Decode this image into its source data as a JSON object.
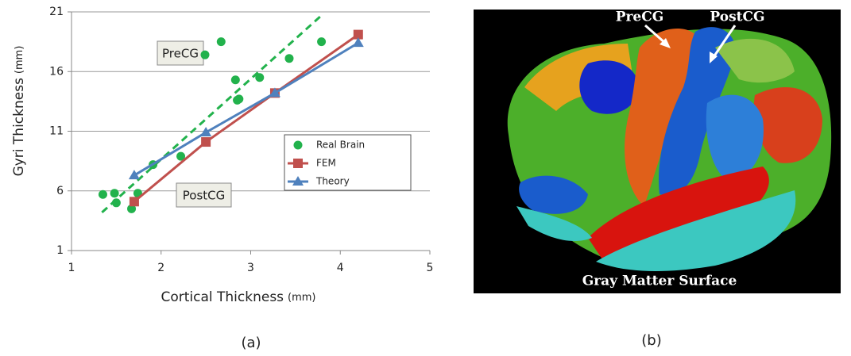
{
  "chart_data": {
    "type": "scatter",
    "xlabel": "Cortical Thickness",
    "xlabel_unit": "(mm)",
    "ylabel": "Gyri Thickness",
    "ylabel_unit": "(mm)",
    "xlim": [
      1,
      5
    ],
    "xticks": [
      1,
      2,
      3,
      4,
      5
    ],
    "ylim": [
      1,
      21
    ],
    "yticks": [
      1,
      6,
      11,
      16,
      21
    ],
    "grid": true,
    "legend": "right",
    "annotations": [
      "PreCG",
      "PostCG"
    ],
    "series": [
      {
        "name": "Real Brain",
        "color": "#22b24c",
        "marker": "circle",
        "line": false,
        "x": [
          1.35,
          1.48,
          1.5,
          1.67,
          1.74,
          1.91,
          2.22,
          2.49,
          2.67,
          2.83,
          2.85,
          2.87,
          3.1,
          3.43,
          3.79
        ],
        "values": [
          5.7,
          5.8,
          5.0,
          4.5,
          5.8,
          8.2,
          8.9,
          17.4,
          18.5,
          15.3,
          13.6,
          13.7,
          15.5,
          17.1,
          18.5
        ]
      },
      {
        "name": "FEM",
        "color": "#c0504d",
        "marker": "square",
        "line": true,
        "x": [
          1.7,
          2.5,
          3.27,
          4.2
        ],
        "values": [
          5.1,
          10.1,
          14.2,
          19.1
        ]
      },
      {
        "name": "Theory",
        "color": "#4f81bd",
        "marker": "triangle",
        "line": true,
        "x": [
          1.7,
          2.5,
          3.27,
          4.2
        ],
        "values": [
          7.3,
          10.9,
          14.2,
          18.4
        ]
      }
    ],
    "trendline": {
      "color": "#22b24c",
      "dashed": true,
      "x": [
        1.34,
        3.79
      ],
      "values": [
        4.2,
        20.7
      ]
    }
  },
  "figure_b": {
    "labels": [
      "PreCG",
      "PostCG"
    ],
    "caption": "Gray Matter Surface"
  },
  "captions": [
    "(a)",
    "(b)"
  ]
}
